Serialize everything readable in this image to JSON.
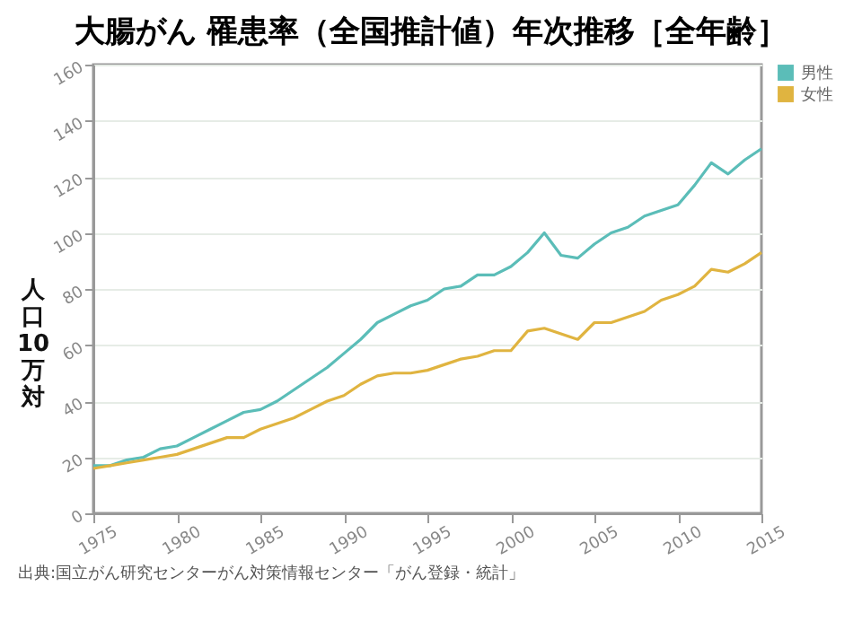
{
  "chart_data": {
    "type": "line",
    "title": "大腸がん 罹患率（全国推計値）年次推移［全年齢］",
    "ylabel": "人口10万対",
    "x": [
      1975,
      1976,
      1977,
      1978,
      1979,
      1980,
      1981,
      1982,
      1983,
      1984,
      1985,
      1986,
      1987,
      1988,
      1989,
      1990,
      1991,
      1992,
      1993,
      1994,
      1995,
      1996,
      1997,
      1998,
      1999,
      2000,
      2001,
      2002,
      2003,
      2004,
      2005,
      2006,
      2007,
      2008,
      2009,
      2010,
      2011,
      2012,
      2013,
      2014,
      2015
    ],
    "series": [
      {
        "name": "男性",
        "color": "#5bbdb8",
        "values": [
          17,
          17,
          19,
          20,
          23,
          24,
          27,
          30,
          33,
          36,
          37,
          40,
          44,
          48,
          52,
          57,
          62,
          68,
          71,
          74,
          76,
          80,
          81,
          85,
          85,
          88,
          93,
          100,
          92,
          91,
          96,
          100,
          102,
          106,
          108,
          110,
          117,
          125,
          121,
          126,
          130
        ]
      },
      {
        "name": "女性",
        "color": "#e0b440",
        "values": [
          16,
          17,
          18,
          19,
          20,
          21,
          23,
          25,
          27,
          27,
          30,
          32,
          34,
          37,
          40,
          42,
          46,
          49,
          50,
          50,
          51,
          53,
          55,
          56,
          58,
          58,
          65,
          66,
          64,
          62,
          68,
          68,
          70,
          72,
          76,
          78,
          81,
          87,
          86,
          89,
          93
        ]
      }
    ],
    "xlim": [
      1975,
      2015
    ],
    "xticks": [
      1975,
      1980,
      1985,
      1990,
      1995,
      2000,
      2005,
      2010,
      2015
    ],
    "ylim": [
      0,
      160
    ],
    "yticks": [
      0,
      20,
      40,
      60,
      80,
      100,
      120,
      140,
      160
    ],
    "grid": "y",
    "legend": "top right",
    "marker": "none",
    "line_style": "solid",
    "annotations": [
      "出典:国立がん研究センターがん対策情報センター「がん登録・統計」"
    ]
  }
}
